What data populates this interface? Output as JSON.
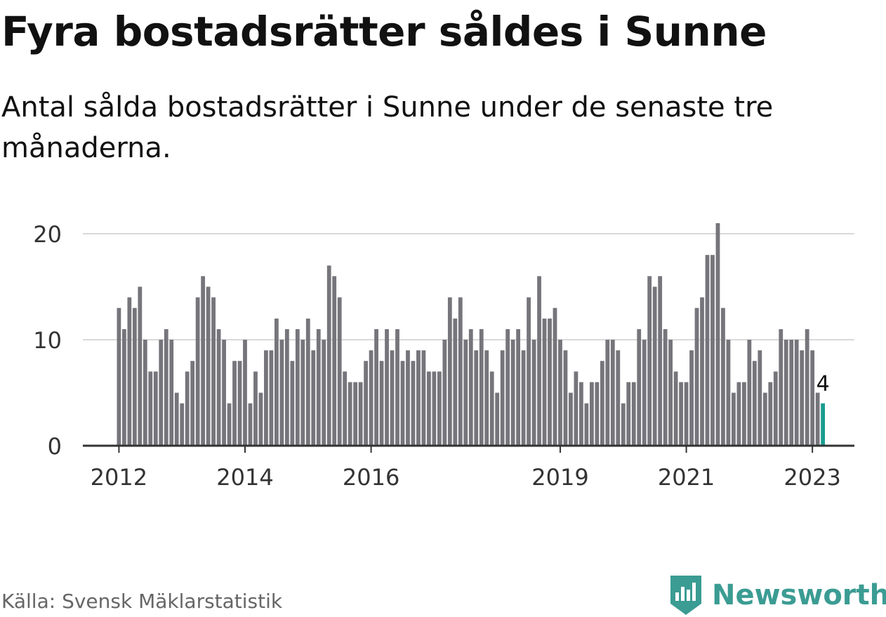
{
  "header": {
    "title": "Fyra bostadsrätter såldes i Sunne",
    "subtitle": "Antal sålda bostadsrätter i Sunne under de senaste tre månaderna."
  },
  "footer": {
    "source": "Källa: Svensk Mäklarstatistik",
    "brand": "Newsworthy",
    "brand_icon": "bar-chart-badge-icon"
  },
  "colors": {
    "bar": "#76757b",
    "highlight": "#1a9c90",
    "grid": "#d9d9d9",
    "axis": "#333333",
    "brand": "#3b9c93"
  },
  "chart_data": {
    "type": "bar",
    "title": "Fyra bostadsrätter såldes i Sunne",
    "subtitle": "Antal sålda bostadsrätter i Sunne under de senaste tre månaderna.",
    "xlabel": "",
    "ylabel": "",
    "ylim": [
      0,
      20
    ],
    "y_ticks": [
      0,
      10,
      20
    ],
    "x_tick_labels": [
      "2012",
      "2014",
      "2016",
      "2019",
      "2021",
      "2023"
    ],
    "x_tick_positions": [
      "2012-01",
      "2014-01",
      "2016-01",
      "2019-01",
      "2021-01",
      "2023-01"
    ],
    "grid": true,
    "legend": "none",
    "start_month": "2012-01",
    "period": "rolling three months, monthly",
    "highlight_label": "4",
    "values": [
      13,
      11,
      14,
      13,
      15,
      10,
      7,
      7,
      10,
      11,
      10,
      5,
      4,
      7,
      8,
      14,
      16,
      15,
      14,
      11,
      10,
      4,
      8,
      8,
      10,
      4,
      7,
      5,
      9,
      9,
      12,
      10,
      11,
      8,
      11,
      10,
      12,
      9,
      11,
      10,
      17,
      16,
      14,
      7,
      6,
      6,
      6,
      8,
      9,
      11,
      8,
      11,
      9,
      11,
      8,
      9,
      8,
      9,
      9,
      7,
      7,
      7,
      10,
      14,
      12,
      14,
      10,
      11,
      9,
      11,
      9,
      7,
      5,
      9,
      11,
      10,
      11,
      9,
      14,
      10,
      16,
      12,
      12,
      13,
      10,
      9,
      5,
      7,
      6,
      4,
      6,
      6,
      8,
      10,
      10,
      9,
      4,
      6,
      6,
      11,
      10,
      16,
      15,
      16,
      11,
      10,
      7,
      6,
      6,
      9,
      13,
      14,
      18,
      18,
      21,
      13,
      10,
      5,
      6,
      6,
      10,
      8,
      9,
      5,
      6,
      7,
      11,
      10,
      10,
      10,
      9,
      11,
      9,
      5,
      4
    ]
  }
}
